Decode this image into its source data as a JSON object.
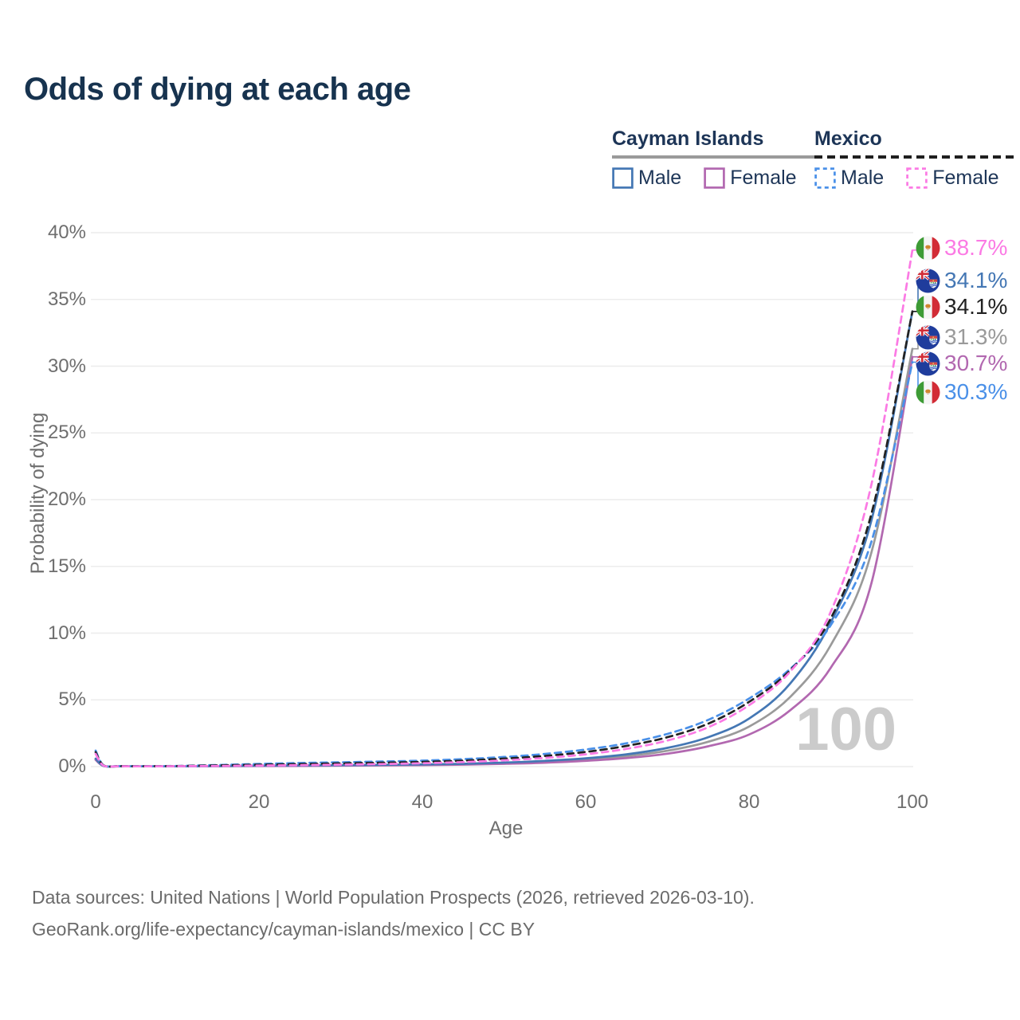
{
  "title": "Odds of dying at each age",
  "watermark": "100",
  "footer": {
    "line1": "Data sources: United Nations | World Population Prospects (2026, retrieved 2026-03-10).",
    "line2": "GeoRank.org/life-expectancy/cayman-islands/mexico | CC BY"
  },
  "legend": {
    "groups": [
      {
        "name": "Cayman Islands",
        "underline_style": "solid",
        "underline_color": "#9a9a9a",
        "items": [
          {
            "label": "Male",
            "color": "#4477b4",
            "dashed": false
          },
          {
            "label": "Female",
            "color": "#b268b0",
            "dashed": false
          }
        ]
      },
      {
        "name": "Mexico",
        "underline_style": "dashed",
        "underline_color": "#1f1f1f",
        "items": [
          {
            "label": "Male",
            "color": "#4a90e8",
            "dashed": true
          },
          {
            "label": "Female",
            "color": "#fb7ae4",
            "dashed": true
          }
        ]
      }
    ]
  },
  "chart_data": {
    "type": "line",
    "title": "Odds of dying at each age",
    "xlabel": "Age",
    "ylabel": "Probability of dying",
    "xlim": [
      0,
      100
    ],
    "ylim": [
      0,
      40
    ],
    "x_ticks": [
      0,
      20,
      40,
      60,
      80,
      100
    ],
    "y_ticks": [
      "0%",
      "5%",
      "10%",
      "15%",
      "20%",
      "25%",
      "30%",
      "35%",
      "40%"
    ],
    "grid": "horizontal",
    "legend_position": "top-right",
    "x": [
      0,
      1,
      3,
      5,
      10,
      15,
      20,
      25,
      30,
      35,
      40,
      45,
      50,
      55,
      60,
      65,
      70,
      75,
      80,
      85,
      90,
      95,
      100
    ],
    "series": [
      {
        "name": "Cayman Islands — Both sexes",
        "country": "cayman-islands",
        "sex": "both",
        "color": "#9a9a9a",
        "dashed": false,
        "end_label": "31.3%",
        "flag": "cayman-islands",
        "values": [
          0.55,
          0.045,
          0.025,
          0.02,
          0.02,
          0.035,
          0.055,
          0.07,
          0.09,
          0.11,
          0.14,
          0.18,
          0.26,
          0.36,
          0.53,
          0.78,
          1.19,
          1.86,
          3.0,
          5.2,
          9.1,
          16.1,
          31.3
        ]
      },
      {
        "name": "Cayman Islands — Female",
        "country": "cayman-islands",
        "sex": "female",
        "color": "#b268b0",
        "dashed": false,
        "end_label": "30.7%",
        "flag": "cayman-islands",
        "values": [
          0.5,
          0.04,
          0.02,
          0.02,
          0.02,
          0.03,
          0.04,
          0.05,
          0.07,
          0.09,
          0.11,
          0.15,
          0.21,
          0.29,
          0.43,
          0.64,
          0.97,
          1.52,
          2.4,
          4.2,
          7.4,
          13.8,
          30.7
        ]
      },
      {
        "name": "Cayman Islands — Male",
        "country": "cayman-islands",
        "sex": "male",
        "color": "#4477b4",
        "dashed": false,
        "end_label": "34.1%",
        "flag": "cayman-islands",
        "values": [
          0.6,
          0.05,
          0.03,
          0.02,
          0.02,
          0.04,
          0.07,
          0.09,
          0.11,
          0.13,
          0.16,
          0.21,
          0.3,
          0.43,
          0.62,
          0.92,
          1.4,
          2.2,
          3.6,
          6.2,
          10.8,
          18.5,
          34.1
        ]
      },
      {
        "name": "Mexico — Male",
        "country": "mexico",
        "sex": "male",
        "color": "#4a90e8",
        "dashed": true,
        "end_label": "30.3%",
        "flag": "mexico",
        "values": [
          1.2,
          0.08,
          0.04,
          0.03,
          0.05,
          0.12,
          0.2,
          0.27,
          0.32,
          0.38,
          0.45,
          0.56,
          0.72,
          0.95,
          1.28,
          1.75,
          2.45,
          3.5,
          5.1,
          7.3,
          10.6,
          16.9,
          30.3
        ]
      },
      {
        "name": "Mexico — Both sexes",
        "country": "mexico",
        "sex": "both",
        "color": "#222222",
        "dashed": true,
        "end_label": "34.1%",
        "flag": "mexico",
        "values": [
          1.08,
          0.07,
          0.035,
          0.025,
          0.04,
          0.09,
          0.14,
          0.19,
          0.24,
          0.29,
          0.35,
          0.45,
          0.6,
          0.8,
          1.1,
          1.55,
          2.2,
          3.22,
          4.85,
          7.2,
          11.1,
          19.0,
          34.1
        ]
      },
      {
        "name": "Mexico — Female",
        "country": "mexico",
        "sex": "female",
        "color": "#fb7ae4",
        "dashed": true,
        "end_label": "38.7%",
        "flag": "mexico",
        "values": [
          0.95,
          0.06,
          0.03,
          0.02,
          0.03,
          0.05,
          0.08,
          0.11,
          0.15,
          0.19,
          0.25,
          0.34,
          0.47,
          0.65,
          0.92,
          1.33,
          1.95,
          2.95,
          4.6,
          7.1,
          11.6,
          21.2,
          38.7
        ]
      }
    ],
    "end_label_order": [
      "Mexico — Female",
      "Cayman Islands — Male",
      "Mexico — Both sexes",
      "Cayman Islands — Both sexes",
      "Cayman Islands — Female",
      "Mexico — Male"
    ]
  }
}
